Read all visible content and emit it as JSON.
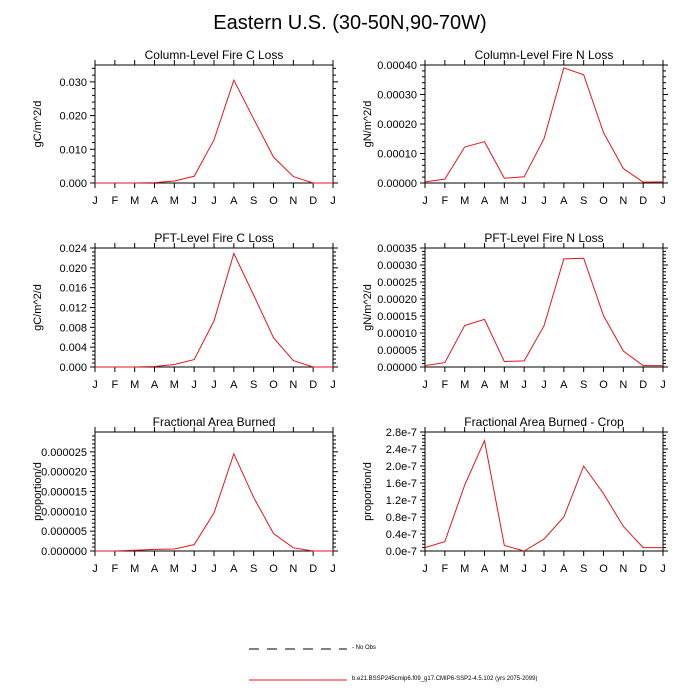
{
  "title": "Eastern U.S. (30-50N,90-70W)",
  "months": [
    "J",
    "F",
    "M",
    "A",
    "M",
    "J",
    "J",
    "A",
    "S",
    "O",
    "N",
    "D",
    "J"
  ],
  "colors": {
    "model": "#e8141c",
    "axis": "#000000"
  },
  "chart_data": [
    {
      "type": "line",
      "title": "Column-Level Fire C Loss",
      "ylabel": "gC/m^2/d",
      "ylim": [
        0,
        0.035
      ],
      "yticks": [
        0.0,
        0.01,
        0.02,
        0.03
      ],
      "ytick_labels": [
        "0.000",
        "0.010",
        "0.020",
        "0.030"
      ],
      "values": [
        0.0,
        0.0,
        0.0,
        0.0001,
        0.0006,
        0.002,
        0.0128,
        0.0305,
        0.019,
        0.0077,
        0.0019,
        0.0,
        0.0
      ]
    },
    {
      "type": "line",
      "title": "Column-Level Fire N Loss",
      "ylabel": "gN/m^2/d",
      "ylim": [
        0,
        0.0004
      ],
      "yticks": [
        0.0,
        0.0001,
        0.0002,
        0.0003,
        0.0004
      ],
      "ytick_labels": [
        "0.00000",
        "0.00010",
        "0.00020",
        "0.00030",
        "0.00040"
      ],
      "values": [
        4e-06,
        1.3e-05,
        0.000122,
        0.00014,
        1.6e-05,
        2.1e-05,
        0.00015,
        0.00039,
        0.000367,
        0.000171,
        4.9e-05,
        3e-06,
        4e-06
      ]
    },
    {
      "type": "line",
      "title": "PFT-Level Fire C Loss",
      "ylabel": "gC/m^2/d",
      "ylim": [
        0,
        0.024
      ],
      "yticks": [
        0.0,
        0.004,
        0.008,
        0.012,
        0.016,
        0.02,
        0.024
      ],
      "ytick_labels": [
        "0.000",
        "0.004",
        "0.008",
        "0.012",
        "0.016",
        "0.020",
        "0.024"
      ],
      "values": [
        0.0,
        0.0,
        0.0,
        0.0001,
        0.0005,
        0.0015,
        0.0093,
        0.0229,
        0.0145,
        0.0059,
        0.0013,
        0.0,
        0.0
      ]
    },
    {
      "type": "line",
      "title": "PFT-Level Fire N Loss",
      "ylabel": "gN/m^2/d",
      "ylim": [
        0,
        0.00035
      ],
      "yticks": [
        0.0,
        5e-05,
        0.0001,
        0.00015,
        0.0002,
        0.00025,
        0.0003,
        0.00035
      ],
      "ytick_labels": [
        "0.00000",
        "0.00005",
        "0.00010",
        "0.00015",
        "0.00020",
        "0.00025",
        "0.00030",
        "0.00035"
      ],
      "values": [
        4e-06,
        1.3e-05,
        0.000122,
        0.00014,
        1.6e-05,
        1.8e-05,
        0.000121,
        0.000318,
        0.00032,
        0.000151,
        4.7e-05,
        4e-06,
        4e-06
      ]
    },
    {
      "type": "line",
      "title": "Fractional Area Burned",
      "ylabel": "proportion/d",
      "ylim": [
        0,
        3e-05
      ],
      "yticks": [
        0.0,
        5e-06,
        1e-05,
        1.5e-05,
        2e-05,
        2.5e-05
      ],
      "ytick_labels": [
        "0.000000",
        "0.000005",
        "0.000010",
        "0.000015",
        "0.000020",
        "0.000025"
      ],
      "values": [
        0.0,
        0.0,
        2e-07,
        4e-07,
        5e-07,
        1.6e-06,
        9.6e-06,
        2.45e-05,
        1.35e-05,
        4.4e-06,
        8e-07,
        0.0,
        0.0
      ]
    },
    {
      "type": "line",
      "title": "Fractional Area Burned - Crop",
      "ylabel": "proportion/d",
      "ylim": [
        0,
        2.8e-07
      ],
      "yticks": [
        0.0,
        4e-08,
        8e-08,
        1.2e-07,
        1.6e-07,
        2e-07,
        2.4e-07,
        2.8e-07
      ],
      "ytick_labels": [
        "0.0e-7",
        "0.4e-7",
        "0.8e-7",
        "1.2e-7",
        "1.6e-7",
        "2.0e-7",
        "2.4e-7",
        "2.8e-7"
      ],
      "values": [
        8e-09,
        2.2e-08,
        1.55e-07,
        2.6e-07,
        1.3e-08,
        0.0,
        2.8e-08,
        8e-08,
        2e-07,
        1.35e-07,
        5.8e-08,
        8e-09,
        8e-09
      ]
    }
  ],
  "legend": {
    "obs_label": "- No Obs",
    "model_label": "b.e21.BSSP245cmip6.f09_g17.CMIP6-SSP2-4.5.102 (yrs 2075-2099)"
  }
}
